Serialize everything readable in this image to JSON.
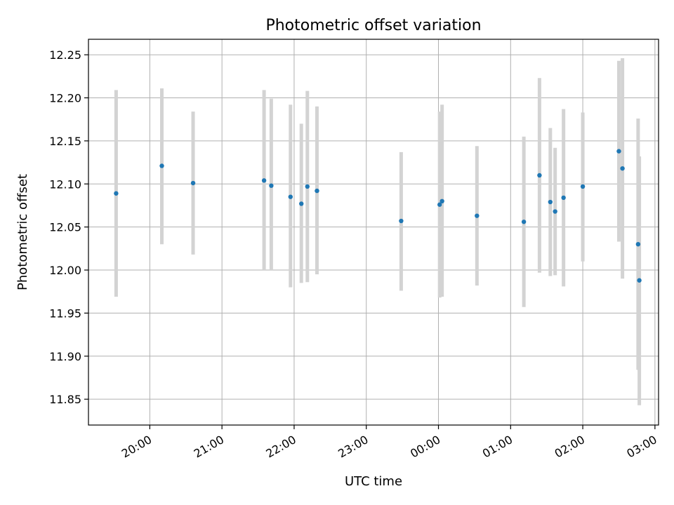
{
  "chart_data": {
    "type": "scatter",
    "title": "Photometric offset variation",
    "xlabel": "UTC time",
    "ylabel": "Photometric offset",
    "grid": true,
    "x_tick_labels": [
      "20:00",
      "21:00",
      "22:00",
      "23:00",
      "00:00",
      "01:00",
      "02:00",
      "03:00"
    ],
    "y_tick_labels": [
      "11.85",
      "11.90",
      "11.95",
      "12.00",
      "12.05",
      "12.10",
      "12.15",
      "12.20",
      "12.25"
    ],
    "xlim": [
      "19:09",
      "03:03"
    ],
    "ylim": [
      11.82,
      12.268
    ],
    "colors": {
      "point": "#1f77b4",
      "errorbar": "#d3d3d3",
      "grid": "#b0b0b0"
    },
    "points": [
      {
        "time": "19:32",
        "y": 12.089,
        "ylow": 11.969,
        "yhigh": 12.209
      },
      {
        "time": "20:10",
        "y": 12.121,
        "ylow": 12.03,
        "yhigh": 12.211
      },
      {
        "time": "20:36",
        "y": 12.101,
        "ylow": 12.018,
        "yhigh": 12.184
      },
      {
        "time": "21:35",
        "y": 12.104,
        "ylow": 12.0,
        "yhigh": 12.209
      },
      {
        "time": "21:41",
        "y": 12.098,
        "ylow": 12.0,
        "yhigh": 12.199
      },
      {
        "time": "21:57",
        "y": 12.085,
        "ylow": 11.98,
        "yhigh": 12.192
      },
      {
        "time": "22:06",
        "y": 12.077,
        "ylow": 11.985,
        "yhigh": 12.17
      },
      {
        "time": "22:11",
        "y": 12.097,
        "ylow": 11.986,
        "yhigh": 12.208
      },
      {
        "time": "22:19",
        "y": 12.092,
        "ylow": 11.995,
        "yhigh": 12.19
      },
      {
        "time": "23:29",
        "y": 12.057,
        "ylow": 11.976,
        "yhigh": 12.137
      },
      {
        "time": "00:01",
        "y": 12.076,
        "ylow": 11.968,
        "yhigh": 12.184
      },
      {
        "time": "00:03",
        "y": 12.08,
        "ylow": 11.969,
        "yhigh": 12.192
      },
      {
        "time": "00:32",
        "y": 12.063,
        "ylow": 11.982,
        "yhigh": 12.144
      },
      {
        "time": "01:11",
        "y": 12.056,
        "ylow": 11.957,
        "yhigh": 12.155
      },
      {
        "time": "01:24",
        "y": 12.11,
        "ylow": 11.997,
        "yhigh": 12.223
      },
      {
        "time": "01:33",
        "y": 12.079,
        "ylow": 11.993,
        "yhigh": 12.165
      },
      {
        "time": "01:37",
        "y": 12.068,
        "ylow": 11.994,
        "yhigh": 12.142
      },
      {
        "time": "01:44",
        "y": 12.084,
        "ylow": 11.981,
        "yhigh": 12.187
      },
      {
        "time": "02:00",
        "y": 12.097,
        "ylow": 12.01,
        "yhigh": 12.183
      },
      {
        "time": "02:30",
        "y": 12.138,
        "ylow": 12.033,
        "yhigh": 12.243
      },
      {
        "time": "02:33",
        "y": 12.118,
        "ylow": 11.99,
        "yhigh": 12.246
      },
      {
        "time": "02:46",
        "y": 12.03,
        "ylow": 11.884,
        "yhigh": 12.176
      },
      {
        "time": "02:47",
        "y": 11.988,
        "ylow": 11.843,
        "yhigh": 12.132
      }
    ]
  }
}
